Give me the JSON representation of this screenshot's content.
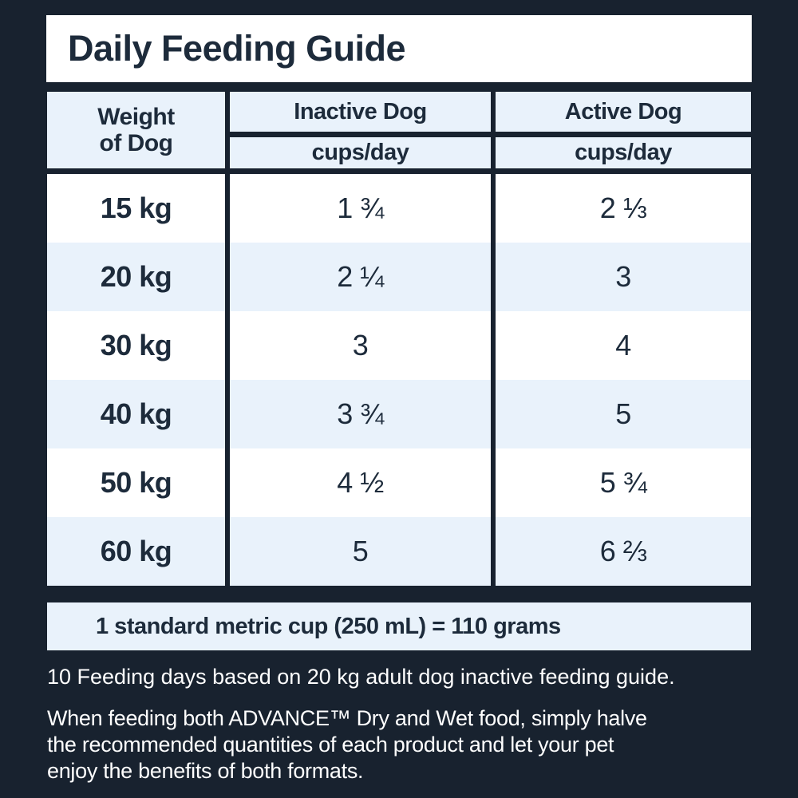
{
  "colors": {
    "background": "#18222f",
    "panel": "#ffffff",
    "row_alt": "#e9f2fb",
    "text_dark": "#1d2b3b",
    "text_light": "#ffffff"
  },
  "title": "Daily Feeding Guide",
  "table": {
    "weight_header": [
      "Weight",
      "of Dog"
    ],
    "columns": [
      {
        "label": "Inactive Dog",
        "sublabel": "cups/day"
      },
      {
        "label": "Active Dog",
        "sublabel": "cups/day"
      }
    ],
    "rows": [
      {
        "weight": "15 kg",
        "inactive": "1 ¾",
        "active": "2 ⅓"
      },
      {
        "weight": "20 kg",
        "inactive": "2 ¼",
        "active": "3"
      },
      {
        "weight": "30 kg",
        "inactive": "3",
        "active": "4"
      },
      {
        "weight": "40 kg",
        "inactive": "3 ¾",
        "active": "5"
      },
      {
        "weight": "50 kg",
        "inactive": "4 ½",
        "active": "5 ¾"
      },
      {
        "weight": "60 kg",
        "inactive": "5",
        "active": "6 ⅔"
      }
    ],
    "note": "1 standard metric cup (250 mL) = 110 grams"
  },
  "footnotes": {
    "basis": "10 Feeding days based on 20 kg adult dog inactive feeding guide.",
    "mixed_feeding": [
      "When feeding both ADVANCE™ Dry and Wet food, simply halve",
      "the recommended quantities of each product and let your pet",
      "enjoy the benefits of both formats."
    ]
  }
}
